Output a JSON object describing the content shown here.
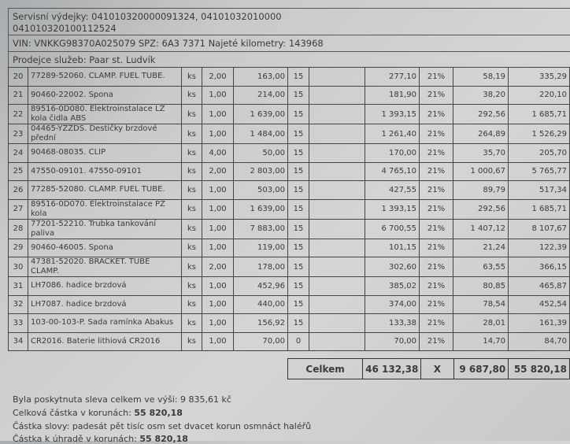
{
  "header": {
    "service_slips_label": "Servisní výdejky:",
    "service_slips_line1": "041010320000091324, 04101032010000",
    "service_slips_line2": "041010320100112524",
    "vehicle_line": "VIN: VNKKG98370A025079 SPZ: 6A3 7371 Najeté kilometry: 143968",
    "seller_line": "Prodejce služeb: Paar st. Ludvík"
  },
  "rows": [
    {
      "no": "20",
      "desc": "77289-52060. CLAMP. FUEL TUBE.",
      "unit": "ks",
      "qty": "2,00",
      "price": "163,00",
      "disc": "15",
      "base": "277,10",
      "vat_rate": "21%",
      "vat": "58,19",
      "total": "335,29"
    },
    {
      "no": "21",
      "desc": "90460-22002. Spona",
      "unit": "ks",
      "qty": "1,00",
      "price": "214,00",
      "disc": "15",
      "base": "181,90",
      "vat_rate": "21%",
      "vat": "38,20",
      "total": "220,10"
    },
    {
      "no": "22",
      "desc": "89516-0D080. Elektroinstalace LZ kola čidla ABS",
      "unit": "ks",
      "qty": "1,00",
      "price": "1 639,00",
      "disc": "15",
      "base": "1 393,15",
      "vat_rate": "21%",
      "vat": "292,56",
      "total": "1 685,71"
    },
    {
      "no": "23",
      "desc": "04465-YZZDS. Destičky brzdové přední",
      "unit": "ks",
      "qty": "1,00",
      "price": "1 484,00",
      "disc": "15",
      "base": "1 261,40",
      "vat_rate": "21%",
      "vat": "264,89",
      "total": "1 526,29"
    },
    {
      "no": "24",
      "desc": "90468-08035. CLIP",
      "unit": "ks",
      "qty": "4,00",
      "price": "50,00",
      "disc": "15",
      "base": "170,00",
      "vat_rate": "21%",
      "vat": "35,70",
      "total": "205,70"
    },
    {
      "no": "25",
      "desc": "47550-09101. 47550-09101",
      "unit": "ks",
      "qty": "2,00",
      "price": "2 803,00",
      "disc": "15",
      "base": "4 765,10",
      "vat_rate": "21%",
      "vat": "1 000,67",
      "total": "5 765,77"
    },
    {
      "no": "26",
      "desc": "77285-52080. CLAMP. FUEL TUBE.",
      "unit": "ks",
      "qty": "1,00",
      "price": "503,00",
      "disc": "15",
      "base": "427,55",
      "vat_rate": "21%",
      "vat": "89,79",
      "total": "517,34"
    },
    {
      "no": "27",
      "desc": "89516-0D070. Elektroinstalace PZ kola",
      "unit": "ks",
      "qty": "1,00",
      "price": "1 639,00",
      "disc": "15",
      "base": "1 393,15",
      "vat_rate": "21%",
      "vat": "292,56",
      "total": "1 685,71"
    },
    {
      "no": "28",
      "desc": "77201-52210. Trubka tankování paliva",
      "unit": "ks",
      "qty": "1,00",
      "price": "7 883,00",
      "disc": "15",
      "base": "6 700,55",
      "vat_rate": "21%",
      "vat": "1 407,12",
      "total": "8 107,67"
    },
    {
      "no": "29",
      "desc": "90460-46005. Spona",
      "unit": "ks",
      "qty": "1,00",
      "price": "119,00",
      "disc": "15",
      "base": "101,15",
      "vat_rate": "21%",
      "vat": "21,24",
      "total": "122,39"
    },
    {
      "no": "30",
      "desc": "47381-52020. BRACKET. TUBE CLAMP.",
      "unit": "ks",
      "qty": "2,00",
      "price": "178,00",
      "disc": "15",
      "base": "302,60",
      "vat_rate": "21%",
      "vat": "63,55",
      "total": "366,15"
    },
    {
      "no": "31",
      "desc": "LH7086. hadice brzdová",
      "unit": "ks",
      "qty": "1,00",
      "price": "452,96",
      "disc": "15",
      "base": "385,02",
      "vat_rate": "21%",
      "vat": "80,85",
      "total": "465,87"
    },
    {
      "no": "32",
      "desc": "LH7087. hadice brzdová",
      "unit": "ks",
      "qty": "1,00",
      "price": "440,00",
      "disc": "15",
      "base": "374,00",
      "vat_rate": "21%",
      "vat": "78,54",
      "total": "452,54"
    },
    {
      "no": "33",
      "desc": "103-00-103-P. Sada ramínka Abakus",
      "unit": "ks",
      "qty": "1,00",
      "price": "156,92",
      "disc": "15",
      "base": "133,38",
      "vat_rate": "21%",
      "vat": "28,01",
      "total": "161,39"
    },
    {
      "no": "34",
      "desc": "CR2016. Baterie lithiová CR2016",
      "unit": "ks",
      "qty": "1,00",
      "price": "70,00",
      "disc": "0",
      "base": "70,00",
      "vat_rate": "21%",
      "vat": "14,70",
      "total": "84,70"
    }
  ],
  "totals": {
    "label": "Celkem",
    "base": "46 132,38",
    "vat_rate": "X",
    "vat": "9 687,80",
    "total": "55 820,18"
  },
  "footer": {
    "discount": "Byla poskytnuta sleva celkem ve výši: 9 835,61 kč",
    "total_label": "Celková částka v korunách:",
    "total_value": "55 820,18",
    "words": "Částka slovy: padesát pět tisíc osm set dvacet korun osmnáct haléřů",
    "due_label": "Částka k úhradě v korunách:",
    "due_value": "55 820,18"
  }
}
